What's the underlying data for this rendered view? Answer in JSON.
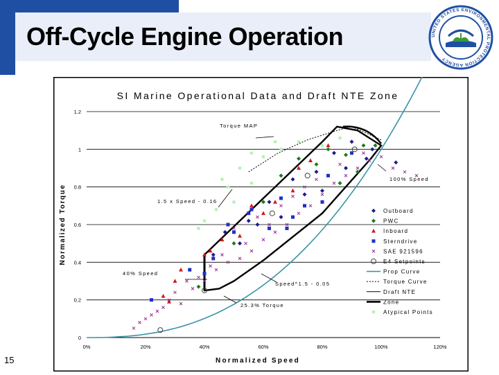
{
  "slide": {
    "title": "Off-Cycle Engine Operation",
    "number": "15",
    "logo_text": "UNITED STATES ENVIRONMENTAL PROTECTION AGENCY"
  },
  "colors": {
    "band_blue": "#1f4fa3",
    "band_light": "#c9d6ee",
    "outboard": "#1c1c8c",
    "pwc": "#1e7a1e",
    "inboard": "#d01818",
    "sterndrive": "#2030c8",
    "sae": "#9a2a9a",
    "prop_curve": "#3a93a8",
    "torque_curve": "#222222",
    "draft_nte": "#000000",
    "atypical": "#b8f0b8"
  },
  "chart_data": {
    "type": "scatter",
    "title": "SI Marine Operational Data and Draft NTE Zone",
    "xlabel": "Normalized Speed",
    "ylabel": "Normalized Torque",
    "xlim": [
      0,
      1.2
    ],
    "ylim": [
      0,
      1.2
    ],
    "x_ticks": [
      "0%",
      "20%",
      "40%",
      "60%",
      "80%",
      "100%",
      "120%"
    ],
    "y_ticks": [
      "0",
      "0.2",
      "0.4",
      "0.6",
      "0.8",
      "1",
      "1.2"
    ],
    "legend_position": "right",
    "legend": [
      "Outboard",
      "PWC",
      "Inboard",
      "Sterndrive",
      "SAE 921596",
      "E4 Setpoints",
      "Prop Curve",
      "Torque Curve",
      "Draft NTE",
      "Zone",
      "Atypical Points"
    ],
    "annotations": [
      "Torque MAP",
      "100% Speed",
      "1.5 x Speed - 0.16",
      "40% Speed",
      "Speed^1.5 - 0.05",
      "25.3% Torque"
    ],
    "series": [
      {
        "name": "Outboard",
        "marker": "diamond",
        "points": [
          [
            0.47,
            0.56
          ],
          [
            0.55,
            0.62
          ],
          [
            0.62,
            0.72
          ],
          [
            0.7,
            0.84
          ],
          [
            0.78,
            0.88
          ],
          [
            0.84,
            0.98
          ],
          [
            0.9,
            1.04
          ],
          [
            0.95,
            0.95
          ],
          [
            0.58,
            0.6
          ],
          [
            0.74,
            0.76
          ],
          [
            0.66,
            0.64
          ],
          [
            0.88,
            0.9
          ],
          [
            0.97,
            1.0
          ],
          [
            1.05,
            0.93
          ],
          [
            0.8,
            0.78
          ],
          [
            0.52,
            0.5
          ],
          [
            0.43,
            0.44
          ]
        ]
      },
      {
        "name": "PWC",
        "marker": "diamond",
        "points": [
          [
            0.38,
            0.27
          ],
          [
            0.6,
            0.72
          ],
          [
            0.72,
            0.95
          ],
          [
            0.78,
            0.92
          ],
          [
            0.82,
            1.0
          ],
          [
            0.86,
            0.82
          ],
          [
            0.94,
            1.02
          ],
          [
            0.88,
            0.97
          ],
          [
            0.98,
            1.02
          ],
          [
            0.66,
            0.86
          ],
          [
            0.5,
            0.5
          ],
          [
            0.92,
            0.88
          ]
        ]
      },
      {
        "name": "Inboard",
        "marker": "triangle",
        "points": [
          [
            0.28,
            0.19
          ],
          [
            0.3,
            0.3
          ],
          [
            0.4,
            0.44
          ],
          [
            0.46,
            0.52
          ],
          [
            0.6,
            0.66
          ],
          [
            0.7,
            0.78
          ],
          [
            0.82,
            1.02
          ],
          [
            0.52,
            0.54
          ],
          [
            0.32,
            0.36
          ],
          [
            0.42,
            0.46
          ],
          [
            0.64,
            0.72
          ],
          [
            0.72,
            0.9
          ],
          [
            0.76,
            0.94
          ],
          [
            0.56,
            0.7
          ],
          [
            0.26,
            0.22
          ]
        ]
      },
      {
        "name": "Sterndrive",
        "marker": "square",
        "points": [
          [
            0.35,
            0.36
          ],
          [
            0.43,
            0.42
          ],
          [
            0.5,
            0.56
          ],
          [
            0.62,
            0.58
          ],
          [
            0.56,
            0.68
          ],
          [
            0.66,
            0.74
          ],
          [
            0.74,
            0.7
          ],
          [
            0.82,
            0.86
          ],
          [
            0.9,
            0.98
          ],
          [
            0.7,
            0.64
          ],
          [
            0.48,
            0.6
          ],
          [
            0.55,
            0.66
          ],
          [
            0.4,
            0.34
          ],
          [
            0.8,
            0.72
          ],
          [
            0.68,
            0.58
          ],
          [
            0.22,
            0.2
          ]
        ]
      },
      {
        "name": "SAE 921596",
        "marker": "x",
        "points": [
          [
            0.16,
            0.05
          ],
          [
            0.2,
            0.1
          ],
          [
            0.24,
            0.14
          ],
          [
            0.28,
            0.2
          ],
          [
            0.32,
            0.18
          ],
          [
            0.36,
            0.26
          ],
          [
            0.4,
            0.3
          ],
          [
            0.44,
            0.36
          ],
          [
            0.48,
            0.4
          ],
          [
            0.52,
            0.42
          ],
          [
            0.56,
            0.46
          ],
          [
            0.6,
            0.52
          ],
          [
            0.64,
            0.56
          ],
          [
            0.68,
            0.6
          ],
          [
            0.72,
            0.66
          ],
          [
            0.76,
            0.7
          ],
          [
            0.8,
            0.76
          ],
          [
            0.84,
            0.82
          ],
          [
            0.88,
            0.86
          ],
          [
            0.92,
            0.9
          ],
          [
            0.96,
            0.94
          ],
          [
            1.0,
            0.96
          ],
          [
            1.04,
            0.9
          ],
          [
            1.08,
            0.88
          ],
          [
            1.12,
            0.86
          ],
          [
            0.7,
            0.75
          ],
          [
            0.5,
            0.58
          ],
          [
            0.58,
            0.64
          ],
          [
            0.66,
            0.7
          ],
          [
            0.74,
            0.8
          ],
          [
            0.46,
            0.44
          ],
          [
            0.54,
            0.5
          ],
          [
            0.62,
            0.6
          ],
          [
            0.78,
            0.84
          ],
          [
            0.86,
            0.92
          ],
          [
            0.94,
            0.98
          ],
          [
            0.34,
            0.3
          ],
          [
            0.3,
            0.24
          ],
          [
            0.42,
            0.38
          ],
          [
            0.38,
            0.32
          ],
          [
            0.26,
            0.16
          ],
          [
            0.22,
            0.12
          ],
          [
            0.18,
            0.08
          ]
        ]
      },
      {
        "name": "E4 Setpoints",
        "marker": "circle-open",
        "points": [
          [
            0.25,
            0.04
          ],
          [
            0.4,
            0.25
          ],
          [
            0.63,
            0.66
          ],
          [
            0.75,
            0.86
          ],
          [
            0.91,
            1.0
          ]
        ]
      },
      {
        "name": "Atypical Points",
        "marker": "dot-light",
        "points": [
          [
            0.4,
            0.62
          ],
          [
            0.46,
            0.84
          ],
          [
            0.52,
            0.9
          ],
          [
            0.56,
            0.82
          ],
          [
            0.6,
            0.96
          ],
          [
            0.66,
            1.0
          ],
          [
            0.72,
            1.04
          ],
          [
            0.8,
            1.02
          ],
          [
            0.86,
            1.06
          ],
          [
            0.5,
            0.72
          ],
          [
            0.44,
            0.68
          ],
          [
            0.38,
            0.58
          ],
          [
            0.56,
            0.98
          ],
          [
            0.64,
            1.04
          ],
          [
            0.48,
            0.8
          ]
        ]
      }
    ],
    "curves": [
      {
        "name": "Prop Curve",
        "style": "teal",
        "formula": "speed^2.5"
      },
      {
        "name": "Torque Curve",
        "style": "dotted",
        "points": [
          [
            0.55,
            0.88
          ],
          [
            0.65,
            0.98
          ],
          [
            0.75,
            1.05
          ],
          [
            0.85,
            1.1
          ],
          [
            0.9,
            1.12
          ],
          [
            1.0,
            1.05
          ]
        ]
      },
      {
        "name": "Draft NTE",
        "style": "thin",
        "points": [
          [
            0.4,
            0.4
          ],
          [
            0.4,
            0.25
          ],
          [
            0.41,
            0.25
          ]
        ]
      },
      {
        "name": "Zone",
        "style": "thick",
        "points": [
          [
            0.4,
            0.44
          ],
          [
            0.8,
            1.04
          ],
          [
            0.85,
            1.12
          ],
          [
            0.92,
            1.1
          ],
          [
            1.0,
            1.02
          ],
          [
            0.965,
            0.95
          ],
          [
            0.8,
            0.66
          ],
          [
            0.6,
            0.41
          ],
          [
            0.5,
            0.3
          ],
          [
            0.45,
            0.26
          ],
          [
            0.4,
            0.25
          ],
          [
            0.4,
            0.44
          ]
        ]
      }
    ]
  }
}
